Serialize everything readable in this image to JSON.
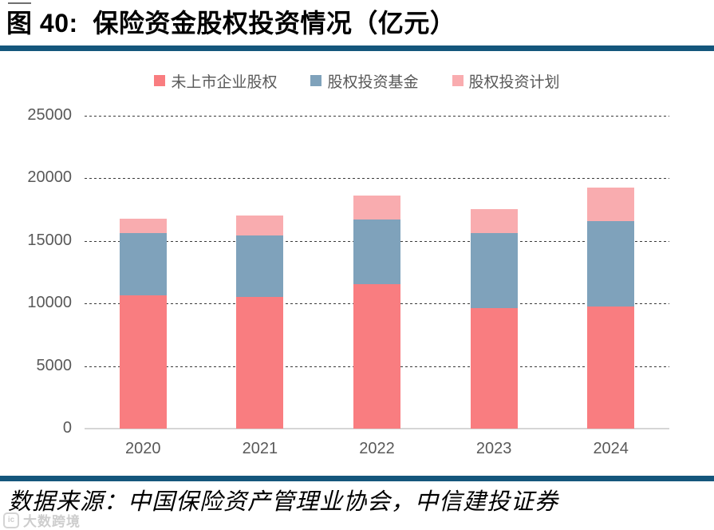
{
  "header": {
    "title": "图 40:  保险资金股权投资情况（亿元）"
  },
  "chart_data": {
    "type": "bar",
    "stacked": true,
    "title": "保险资金股权投资情况（亿元）",
    "unit": "亿元",
    "categories": [
      "2020",
      "2021",
      "2022",
      "2023",
      "2024"
    ],
    "series": [
      {
        "name": "未上市企业股权",
        "color": "#F97D80",
        "values": [
          10650,
          10550,
          11550,
          9650,
          9750
        ]
      },
      {
        "name": "股权投资基金",
        "color": "#7FA2BB",
        "values": [
          4950,
          4900,
          5150,
          5950,
          6850
        ]
      },
      {
        "name": "股权投资计划",
        "color": "#F9ACAF",
        "values": [
          1200,
          1600,
          1950,
          1950,
          2650
        ]
      }
    ],
    "totals": [
      16800,
      17050,
      18650,
      17550,
      19250
    ],
    "ylim": [
      0,
      25000
    ],
    "yticks": [
      0,
      5000,
      10000,
      15000,
      20000,
      25000
    ],
    "grid": "horizontal-dashed",
    "legend_position": "top-center"
  },
  "footer": {
    "source": "数据来源：中国保险资产管理业协会，中信建投证券"
  },
  "watermark": {
    "logo": "ic-logo",
    "text": "大数跨境"
  },
  "style": {
    "accent": "#14567C",
    "axis_text": "#595959",
    "grid_color": "#3b3b3b",
    "axis_line": "#d6d6d6"
  }
}
